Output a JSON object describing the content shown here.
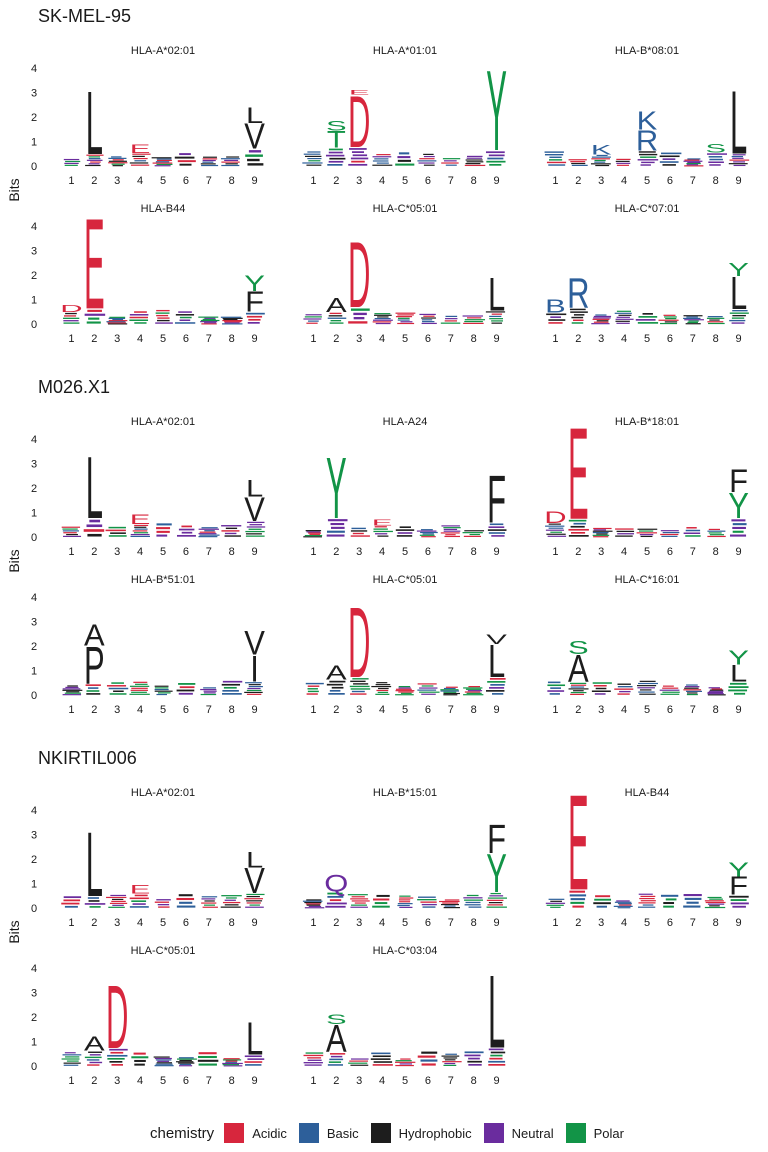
{
  "chart_data": {
    "type": "sequence-logo",
    "ylabel": "Bits",
    "ylim": [
      0,
      4
    ],
    "y_ticks": [
      "0",
      "1",
      "2",
      "3",
      "4"
    ],
    "positions": [
      "1",
      "2",
      "3",
      "4",
      "5",
      "6",
      "7",
      "8",
      "9"
    ],
    "colors": {
      "Acidic": "#d7263d",
      "Basic": "#2d5f9a",
      "Hydrophobic": "#1d1d1d",
      "Neutral": "#6a2c9e",
      "Polar": "#129447"
    },
    "legend": {
      "title": "chemistry",
      "items": [
        "Acidic",
        "Basic",
        "Hydrophobic",
        "Neutral",
        "Polar"
      ]
    },
    "groups": [
      {
        "name": "SK-MEL-95",
        "panels": [
          {
            "title": "HLA-A*02:01",
            "motif": [
              [
                "L",
                2,
                2.65
              ],
              [
                "V",
                9,
                1.05
              ],
              [
                "L",
                9,
                0.65
              ],
              [
                "E",
                4,
                0.35
              ]
            ]
          },
          {
            "title": "HLA-A*01:01",
            "motif": [
              [
                "D",
                3,
                2.15
              ],
              [
                "E",
                3,
                0.2
              ],
              [
                "T",
                2,
                0.7
              ],
              [
                "S",
                2,
                0.4
              ],
              [
                "Y",
                9,
                3.35
              ]
            ]
          },
          {
            "title": "HLA-B*08:01",
            "motif": [
              [
                "L",
                9,
                2.65
              ],
              [
                "R",
                5,
                0.85
              ],
              [
                "K",
                5,
                0.75
              ],
              [
                "K",
                3,
                0.4
              ],
              [
                "S",
                8,
                0.35
              ]
            ]
          }
        ]
      },
      {
        "name": "",
        "panels": [
          {
            "title": "HLA-B44",
            "motif": [
              [
                "E",
                2,
                3.8
              ],
              [
                "F",
                9,
                0.85
              ],
              [
                "Y",
                9,
                0.65
              ],
              [
                "D",
                1,
                0.3
              ]
            ]
          },
          {
            "title": "HLA-C*05:01",
            "motif": [
              [
                "D",
                3,
                2.75
              ],
              [
                "A",
                2,
                0.6
              ],
              [
                "L",
                9,
                1.4
              ]
            ]
          },
          {
            "title": "HLA-C*07:01",
            "motif": [
              [
                "R",
                2,
                1.25
              ],
              [
                "B",
                1,
                0.55
              ],
              [
                "L",
                9,
                1.35
              ],
              [
                "Y",
                9,
                0.55
              ]
            ]
          }
        ]
      },
      {
        "name": "M026.X1",
        "panels": [
          {
            "title": "HLA-A*02:01",
            "motif": [
              [
                "L",
                2,
                2.6
              ],
              [
                "V",
                9,
                1.0
              ],
              [
                "L",
                9,
                0.7
              ],
              [
                "E",
                4,
                0.4
              ]
            ]
          },
          {
            "title": "HLA-A24",
            "motif": [
              [
                "Y",
                2,
                2.55
              ],
              [
                "F",
                9,
                2.0
              ],
              [
                "E",
                4,
                0.25
              ]
            ]
          },
          {
            "title": "HLA-B*18:01",
            "motif": [
              [
                "E",
                2,
                3.85
              ],
              [
                "Y",
                9,
                1.05
              ],
              [
                "F",
                9,
                0.95
              ],
              [
                "D",
                1,
                0.5
              ]
            ]
          }
        ]
      },
      {
        "name": "",
        "panels": [
          {
            "title": "HLA-B*51:01",
            "motif": [
              [
                "P",
                2,
                1.55
              ],
              [
                "A",
                2,
                0.9
              ],
              [
                "I",
                9,
                1.1
              ],
              [
                "V",
                9,
                1.0
              ]
            ]
          },
          {
            "title": "HLA-C*05:01",
            "motif": [
              [
                "D",
                3,
                2.95
              ],
              [
                "A",
                2,
                0.6
              ],
              [
                "L",
                9,
                1.35
              ],
              [
                "V",
                9,
                0.4
              ]
            ]
          },
          {
            "title": "HLA-C*16:01",
            "motif": [
              [
                "A",
                2,
                1.15
              ],
              [
                "S",
                2,
                0.55
              ],
              [
                "L",
                9,
                0.7
              ],
              [
                "Y",
                9,
                0.6
              ]
            ]
          }
        ]
      },
      {
        "name": "NKIRTIL006",
        "panels": [
          {
            "title": "HLA-A*02:01",
            "motif": [
              [
                "L",
                2,
                2.7
              ],
              [
                "V",
                9,
                1.05
              ],
              [
                "L",
                9,
                0.65
              ],
              [
                "E",
                4,
                0.35
              ]
            ]
          },
          {
            "title": "HLA-B*15:01",
            "motif": [
              [
                "Q",
                2,
                0.7
              ],
              [
                "Y",
                9,
                1.6
              ],
              [
                "F",
                9,
                1.2
              ]
            ]
          },
          {
            "title": "HLA-B44",
            "motif": [
              [
                "E",
                2,
                4.0
              ],
              [
                "F",
                9,
                0.75
              ],
              [
                "Y",
                9,
                0.6
              ]
            ]
          }
        ]
      },
      {
        "name": "",
        "panels": [
          {
            "title": "HLA-C*05:01",
            "motif": [
              [
                "D",
                3,
                2.65
              ],
              [
                "A",
                2,
                0.6
              ],
              [
                "L",
                9,
                1.35
              ]
            ]
          },
          {
            "title": "HLA-C*03:04",
            "motif": [
              [
                "A",
                2,
                1.15
              ],
              [
                "S",
                2,
                0.4
              ],
              [
                "L",
                9,
                3.05
              ]
            ]
          }
        ]
      }
    ]
  }
}
